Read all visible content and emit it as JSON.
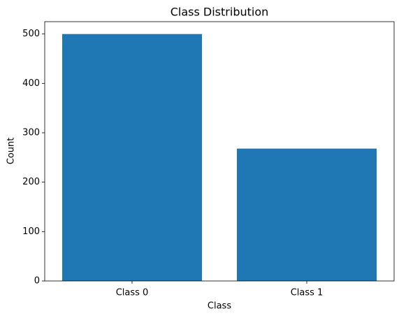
{
  "chart_data": {
    "type": "bar",
    "title": "Class Distribution",
    "x_label": "Class",
    "y_label": "Count",
    "categories": [
      "Class 0",
      "Class 1"
    ],
    "values": [
      500,
      268
    ],
    "color": "#1f77b4",
    "ylim": [
      0,
      525
    ],
    "yticks": [
      0,
      100,
      200,
      300,
      400,
      500
    ],
    "grid": false
  }
}
